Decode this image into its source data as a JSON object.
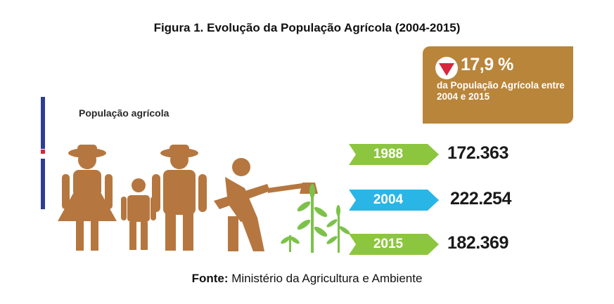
{
  "title": "Figura 1. Evolução da População Agrícola (2004-2015)",
  "section_label": "População agrícola",
  "callout": {
    "percent": "17,9 %",
    "description": "da População Agrícola entre 2004 e 2015",
    "icon": "down-triangle-icon",
    "color": "#b9853a"
  },
  "source": {
    "label": "Fonte:",
    "text": " Ministério da Agricultura e Ambiente"
  },
  "colors": {
    "figures": "#b5773f",
    "plants": "#7cc24a",
    "green_tag": "#8cc63f",
    "blue_tag": "#29b6e6",
    "flag_blue": "#2e3d92",
    "flag_red": "#d7263d"
  },
  "chart_data": {
    "type": "table",
    "title": "Figura 1. Evolução da População Agrícola (2004-2015)",
    "categories": [
      "1988",
      "2004",
      "2015"
    ],
    "values": [
      172363,
      222254,
      182369
    ],
    "value_labels": [
      "172.363",
      "222.254",
      "182.369"
    ],
    "tag_colors": [
      "#8cc63f",
      "#29b6e6",
      "#8cc63f"
    ]
  }
}
